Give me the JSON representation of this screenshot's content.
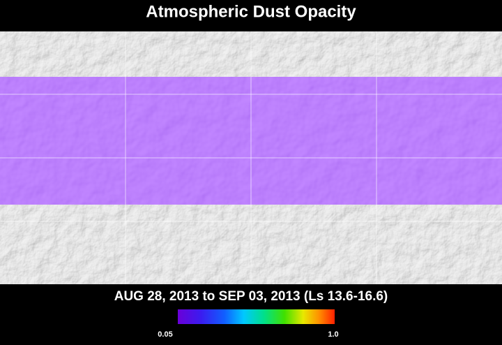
{
  "title": "Atmospheric Dust Opacity",
  "date_range": "AUG 28, 2013 to SEP 03, 2013 (Ls 13.6-16.6)",
  "colorbar": {
    "min_label": "0.05",
    "max_label": "1.0"
  }
}
